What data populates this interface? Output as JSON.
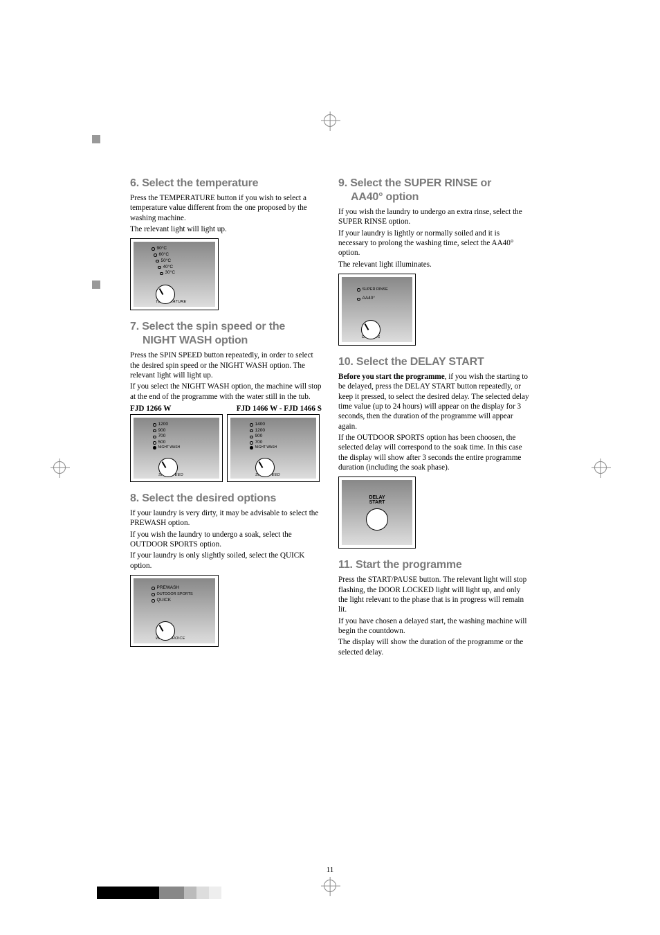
{
  "colors": {
    "heading": "#7a7a7a",
    "text": "#000000",
    "panel_grad_top": "#888888",
    "panel_grad_bottom": "#dddddd",
    "crop": "#888888"
  },
  "page_number": "11",
  "left": {
    "s6": {
      "title": "6. Select the temperature",
      "p1": "Press the TEMPERATURE button if you wish to select a temperature value different from the one proposed by the washing machine.",
      "p2": "The relevant light will light up.",
      "panel": {
        "options": [
          "90°C",
          "60°C",
          "50°C",
          "40°C",
          "30°C"
        ],
        "arc": "TEMPERATURE"
      }
    },
    "s7": {
      "title_a": "7. Select the spin speed or the",
      "title_b": "NIGHT WASH option",
      "p1": "Press the SPIN SPEED button repeatedly, in order to select the desired spin speed or the NIGHT WASH option. The relevant light will light up.",
      "p2": "If you select the NIGHT WASH option, the machine will stop at the end of the programme with the water still in the tub.",
      "head_l": "FJD 1266 W",
      "head_r": "FJD 1466 W - FJD 1466 S",
      "panel_l": {
        "options": [
          "1200",
          "900",
          "700",
          "500"
        ],
        "last": "NIGHT WASH",
        "arc": "SPIN SPEED"
      },
      "panel_r": {
        "options": [
          "1400",
          "1200",
          "900",
          "700"
        ],
        "last": "NIGHT WASH",
        "arc": "SPIN SPEED"
      }
    },
    "s8": {
      "title": "8. Select the desired options",
      "p1": "If your laundry is very dirty, it may be advisable to select the PREWASH option.",
      "p2": "If you wish the laundry to undergo a soak, select the OUTDOOR SPORTS option.",
      "p3": "If your laundry is only slightly soiled, select the QUICK option.",
      "panel": {
        "options": [
          "PREWASH",
          "OUTDOOR SPORTS",
          "QUICK"
        ],
        "arc": "WASH CHOICE"
      }
    }
  },
  "right": {
    "s9": {
      "title_a": "9. Select the SUPER RINSE or",
      "title_b": "AA40° option",
      "p1": "If you wish the laundry to undergo an extra rinse, select the SUPER RINSE option.",
      "p2": "If your laundry is lightly or normally soiled and it is necessary to prolong the washing time, select the AA40° option.",
      "p3": "The relevant light illuminates.",
      "panel": {
        "options": [
          "SUPER RINSE",
          "AA40°"
        ],
        "arc": "OPTIONS"
      }
    },
    "s10": {
      "title": "10. Select the DELAY START",
      "p1a": "Before you start the programme",
      "p1b": ", if you wish the starting to be delayed, press the DELAY START button repeatedly, or keep it pressed, to select the desired delay. The selected delay time value (up to 24 hours) will appear on the display for 3 seconds, then the duration of the programme will appear again.",
      "p2": "If the OUTDOOR SPORTS option has been choosen, the selected delay will correspond to the soak time. In this case the display will show after 3 seconds the entire programme duration (including the soak phase).",
      "panel": {
        "label": "DELAY START"
      }
    },
    "s11": {
      "title": "11. Start the programme",
      "p1": "Press the START/PAUSE button. The relevant light will stop flashing, the DOOR LOCKED light will light up, and only the light relevant to the phase that is in progress will remain lit.",
      "p2": "If you have chosen a delayed start, the washing machine will begin the countdown.",
      "p3": "The display will show the duration of the programme or the selected delay."
    }
  },
  "colorbar": [
    "#000000",
    "#000000",
    "#000000",
    "#000000",
    "#000000",
    "#888888",
    "#888888",
    "#bbbbbb",
    "#dddddd",
    "#eeeeee"
  ]
}
